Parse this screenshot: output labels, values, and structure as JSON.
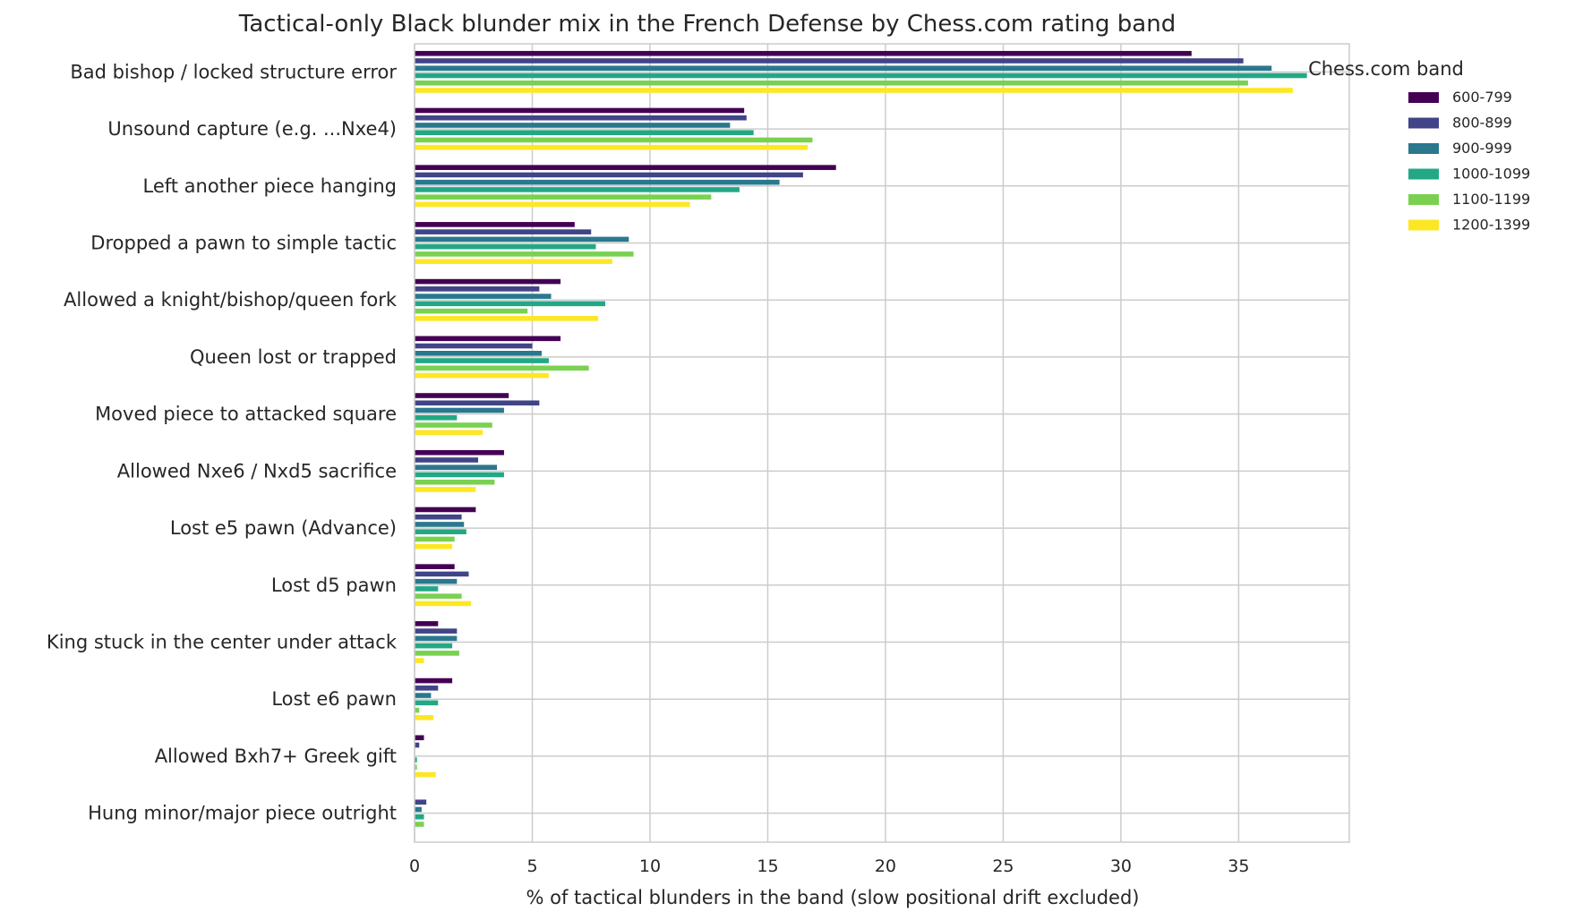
{
  "chart_data": {
    "type": "bar",
    "orientation": "horizontal",
    "title": "Tactical-only Black blunder mix in the French Defense by Chess.com rating band",
    "xlabel": "% of tactical blunders in the band (slow positional drift excluded)",
    "ylabel": "",
    "xlim": [
      0,
      39.7
    ],
    "xticks": [
      0,
      5,
      10,
      15,
      20,
      25,
      30,
      35
    ],
    "grid": true,
    "legend": {
      "title": "Chess.com band",
      "placement": "outside-top-right"
    },
    "categories": [
      "Bad bishop / locked structure error",
      "Unsound capture (e.g. ...Nxe4)",
      "Left another piece hanging",
      "Dropped a pawn to simple tactic",
      "Allowed a knight/bishop/queen fork",
      "Queen lost or trapped",
      "Moved piece to attacked square",
      "Allowed Nxe6 / Nxd5 sacrifice",
      "Lost e5 pawn (Advance)",
      "Lost d5 pawn",
      "King stuck in the center under attack",
      "Lost e6 pawn",
      "Allowed Bxh7+ Greek gift",
      "Hung minor/major piece outright"
    ],
    "series": [
      {
        "name": "600-799",
        "color": "#440154",
        "values": [
          33.0,
          14.0,
          17.9,
          6.8,
          6.2,
          6.2,
          4.0,
          3.8,
          2.6,
          1.7,
          1.0,
          1.6,
          0.4,
          0.0
        ]
      },
      {
        "name": "800-899",
        "color": "#414487",
        "values": [
          35.2,
          14.1,
          16.5,
          7.5,
          5.3,
          5.0,
          5.3,
          2.7,
          2.0,
          2.3,
          1.8,
          1.0,
          0.2,
          0.5
        ]
      },
      {
        "name": "900-999",
        "color": "#2a788e",
        "values": [
          36.4,
          13.4,
          15.5,
          9.1,
          5.8,
          5.4,
          3.8,
          3.5,
          2.1,
          1.8,
          1.8,
          0.7,
          0.0,
          0.3
        ]
      },
      {
        "name": "1000-1099",
        "color": "#22a884",
        "values": [
          37.9,
          14.4,
          13.8,
          7.7,
          8.1,
          5.7,
          1.8,
          3.8,
          2.2,
          1.0,
          1.6,
          1.0,
          0.1,
          0.4
        ]
      },
      {
        "name": "1100-1199",
        "color": "#7ad151",
        "values": [
          35.4,
          16.9,
          12.6,
          9.3,
          4.8,
          7.4,
          3.3,
          3.4,
          1.7,
          2.0,
          1.9,
          0.2,
          0.1,
          0.4
        ]
      },
      {
        "name": "1200-1399",
        "color": "#fde725",
        "values": [
          37.3,
          16.7,
          11.7,
          8.4,
          7.8,
          5.7,
          2.9,
          2.6,
          1.6,
          2.4,
          0.4,
          0.8,
          0.9,
          0.0
        ]
      }
    ]
  }
}
